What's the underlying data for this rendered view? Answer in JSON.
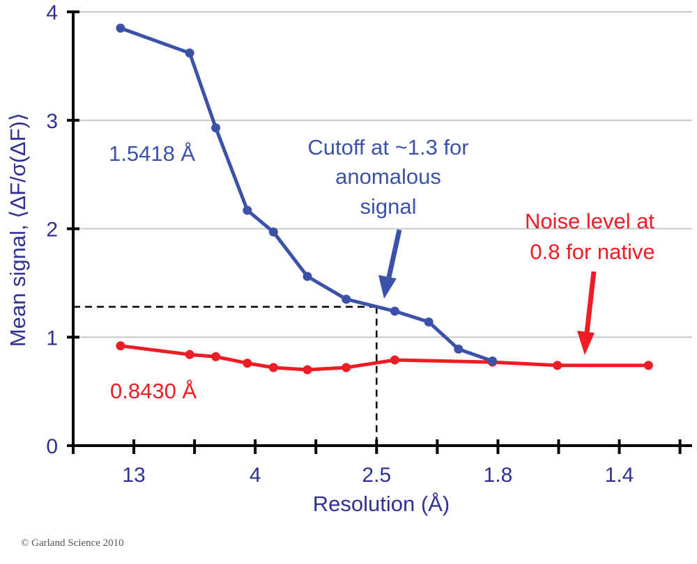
{
  "chart_data": {
    "type": "line",
    "xlabel": "Resolution (Å)",
    "ylabel": "Mean signal, ⟨ΔF/σ(ΔF)⟩",
    "ylim": [
      0,
      4
    ],
    "yticks": [
      "0",
      "1",
      "2",
      "3",
      "4"
    ],
    "grid": "horizontal",
    "x_tick_labels": [
      {
        "x": 1,
        "label": "13"
      },
      {
        "x": 3,
        "label": "4"
      },
      {
        "x": 5,
        "label": "2.5"
      },
      {
        "x": 7,
        "label": "1.8"
      },
      {
        "x": 9,
        "label": "1.4"
      }
    ],
    "x_ticks_major": [
      0,
      2,
      4,
      6,
      8,
      10
    ],
    "x_ticks_minor": [
      1,
      3,
      5,
      7,
      9
    ],
    "xlim": [
      0,
      10.2
    ],
    "series": [
      {
        "name": "1.5418 Å",
        "color": "#3b52a8",
        "x": [
          0.78,
          1.92,
          2.35,
          2.87,
          3.3,
          3.86,
          4.5,
          5.3,
          5.86,
          6.35,
          6.91
        ],
        "y": [
          3.85,
          3.62,
          2.93,
          2.17,
          1.97,
          1.56,
          1.35,
          1.24,
          1.14,
          0.89,
          0.78
        ]
      },
      {
        "name": "0.8430 Å",
        "color": "#ee1c24",
        "x": [
          0.78,
          1.92,
          2.35,
          2.87,
          3.3,
          3.86,
          4.5,
          5.3,
          6.91,
          7.98,
          9.48
        ],
        "y": [
          0.92,
          0.84,
          0.82,
          0.76,
          0.72,
          0.7,
          0.72,
          0.79,
          0.77,
          0.74,
          0.74
        ]
      }
    ],
    "cutoff_line": {
      "x": 5.0,
      "y": 1.28
    },
    "annotations": {
      "blue_label": "1.5418 Å",
      "red_label": "0.8430 Å",
      "cutoff_line1": "Cutoff at ~1.3 for",
      "cutoff_line2": "anomalous",
      "cutoff_line3": "signal",
      "noise_line1": "Noise level at",
      "noise_line2": "0.8 for native"
    }
  },
  "footer": {
    "copyright": "© Garland Science 2010"
  }
}
